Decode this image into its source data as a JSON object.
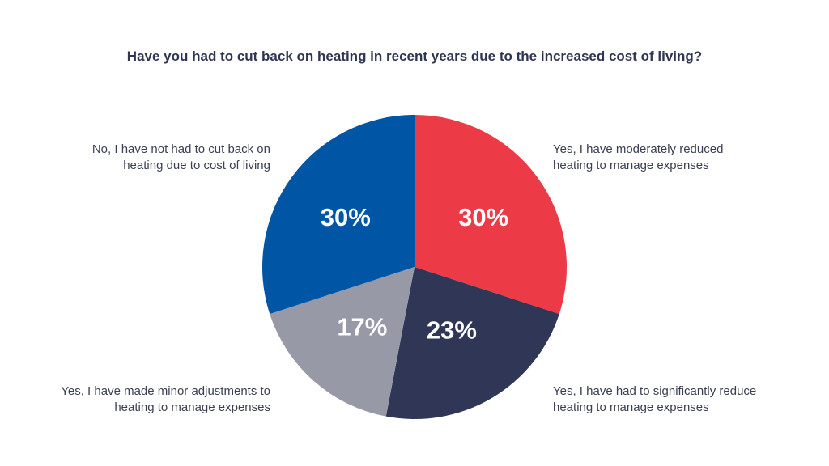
{
  "chart_data": {
    "type": "pie",
    "title": "Have you had to cut back on heating in recent years due to the increased cost of living?",
    "slices": [
      {
        "label": "Yes, I have moderately reduced heating to manage expenses",
        "value": 30,
        "value_label": "30%",
        "color": "#ec3a47"
      },
      {
        "label": "Yes, I have had to significantly reduce heating to manage expenses",
        "value": 23,
        "value_label": "23%",
        "color": "#303656"
      },
      {
        "label": "Yes, I have made minor adjustments to heating to manage expenses",
        "value": 17,
        "value_label": "17%",
        "color": "#9799a6"
      },
      {
        "label": "No, I have not had to cut back on heating due to cost of living",
        "value": 30,
        "value_label": "30%",
        "color": "#0055a5"
      }
    ]
  }
}
